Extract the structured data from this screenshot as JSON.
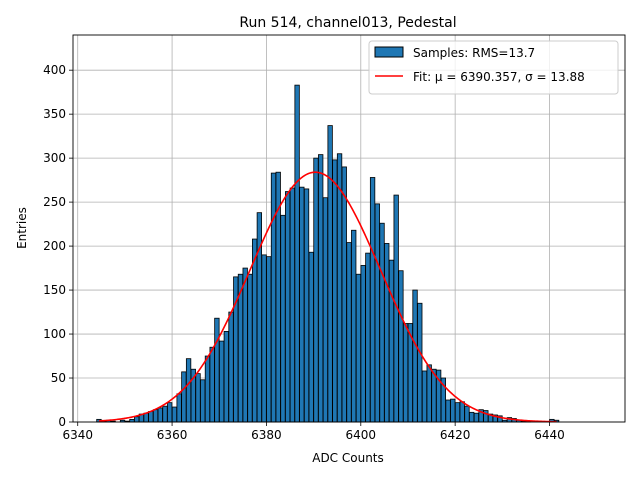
{
  "chart_data": {
    "type": "bar",
    "title": "Run 514, channel013, Pedestal",
    "xlabel": "ADC Counts",
    "ylabel": "Entries",
    "xlim": [
      6339,
      6456
    ],
    "ylim": [
      0,
      440
    ],
    "xticks": [
      6340,
      6360,
      6380,
      6400,
      6420,
      6440
    ],
    "yticks": [
      0,
      50,
      100,
      150,
      200,
      250,
      300,
      350,
      400
    ],
    "grid": true,
    "legend_position": "top-right",
    "bin_width": 0.95,
    "bins": {
      "x": [
        6344.5,
        6345.5,
        6346.5,
        6347.5,
        6348.5,
        6349.5,
        6350.5,
        6351.5,
        6352.5,
        6353.5,
        6354.5,
        6355.5,
        6356.5,
        6357.5,
        6358.5,
        6359.5,
        6360.5,
        6361.5,
        6362.5,
        6363.5,
        6364.5,
        6365.5,
        6366.5,
        6367.5,
        6368.5,
        6369.5,
        6370.5,
        6371.5,
        6372.5,
        6373.5,
        6374.5,
        6375.5,
        6376.5,
        6377.5,
        6378.5,
        6379.5,
        6380.5,
        6381.5,
        6382.5,
        6383.5,
        6384.5,
        6385.5,
        6386.5,
        6387.5,
        6388.5,
        6389.5,
        6390.5,
        6391.5,
        6392.5,
        6393.5,
        6394.5,
        6395.5,
        6396.5,
        6397.5,
        6398.5,
        6399.5,
        6400.5,
        6401.5,
        6402.5,
        6403.5,
        6404.5,
        6405.5,
        6406.5,
        6407.5,
        6408.5,
        6409.5,
        6410.5,
        6411.5,
        6412.5,
        6413.5,
        6414.5,
        6415.5,
        6416.5,
        6417.5,
        6418.5,
        6419.5,
        6420.5,
        6421.5,
        6422.5,
        6423.5,
        6424.5,
        6425.5,
        6426.5,
        6427.5,
        6428.5,
        6429.5,
        6430.5,
        6431.5,
        6432.5,
        6433.5,
        6434.5,
        6435.5,
        6436.5,
        6437.5,
        6438.5,
        6439.5,
        6440.5,
        6441.5
      ],
      "values": [
        3,
        1,
        2,
        1,
        0,
        2,
        1,
        3,
        6,
        9,
        10,
        12,
        14,
        16,
        18,
        22,
        17,
        32,
        57,
        72,
        60,
        55,
        48,
        75,
        85,
        118,
        92,
        103,
        125,
        165,
        168,
        175,
        168,
        208,
        238,
        190,
        188,
        283,
        284,
        235,
        262,
        266,
        383,
        267,
        265,
        193,
        300,
        304,
        255,
        337,
        298,
        305,
        290,
        204,
        218,
        168,
        178,
        192,
        278,
        248,
        226,
        203,
        184,
        258,
        172,
        112,
        112,
        150,
        135,
        58,
        65,
        60,
        59,
        50,
        25,
        26,
        22,
        23,
        18,
        11,
        10,
        14,
        13,
        9,
        8,
        7,
        2,
        5,
        4,
        2,
        1,
        1,
        0,
        0,
        0,
        0,
        3,
        2
      ]
    },
    "series": [
      {
        "name": "Samples: RMS=13.7",
        "type": "histogram",
        "color": "#1f77b4"
      },
      {
        "name": "Fit: μ = 6390.357, σ = 13.88",
        "type": "line",
        "color": "#ff0000",
        "mu": 6390.357,
        "sigma": 13.88,
        "amplitude": 284
      }
    ]
  }
}
